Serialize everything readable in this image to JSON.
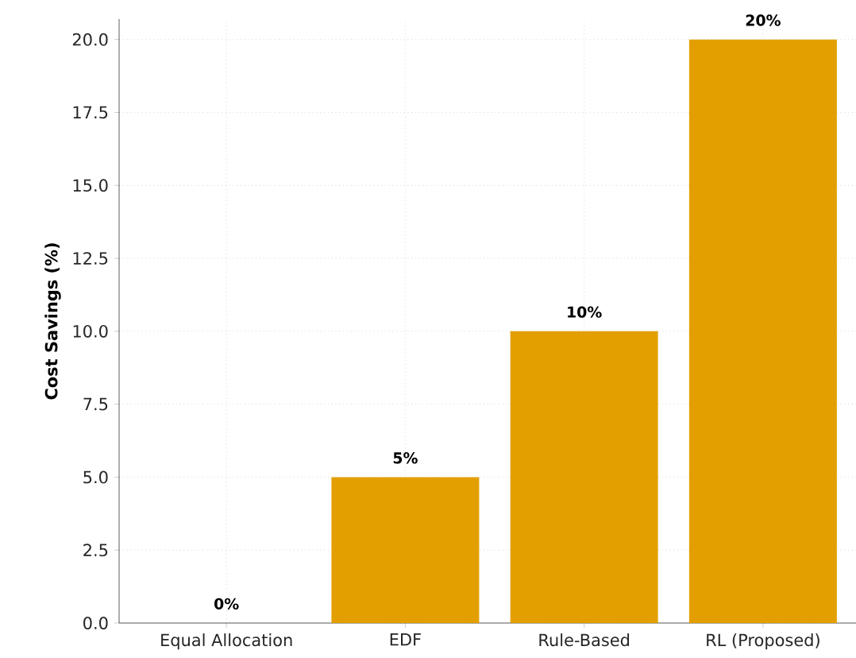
{
  "chart_data": {
    "type": "bar",
    "ylabel": "**Cost Savings (%)**",
    "categories": [
      "Equal Allocation",
      "EDF",
      "Rule-Based",
      "RL (Proposed)"
    ],
    "values": [
      0,
      5,
      10,
      20
    ],
    "color": "#e39f00",
    "value_labels": [
      "**0%**",
      "**5%**",
      "**10%**",
      "**20%**"
    ],
    "ylim": [
      0,
      20.7
    ],
    "yticks": [
      {
        "value": 0,
        "label": "0.0"
      },
      {
        "value": 2.5,
        "label": "2.5"
      },
      {
        "value": 5,
        "label": "5.0"
      },
      {
        "value": 7.5,
        "label": "7.5"
      },
      {
        "value": 10,
        "label": "10.0"
      },
      {
        "value": 12.5,
        "label": "12.5"
      },
      {
        "value": 15,
        "label": "15.0"
      },
      {
        "value": 17.5,
        "label": "17.5"
      },
      {
        "value": 20,
        "label": "20.0"
      }
    ],
    "grid": true
  }
}
